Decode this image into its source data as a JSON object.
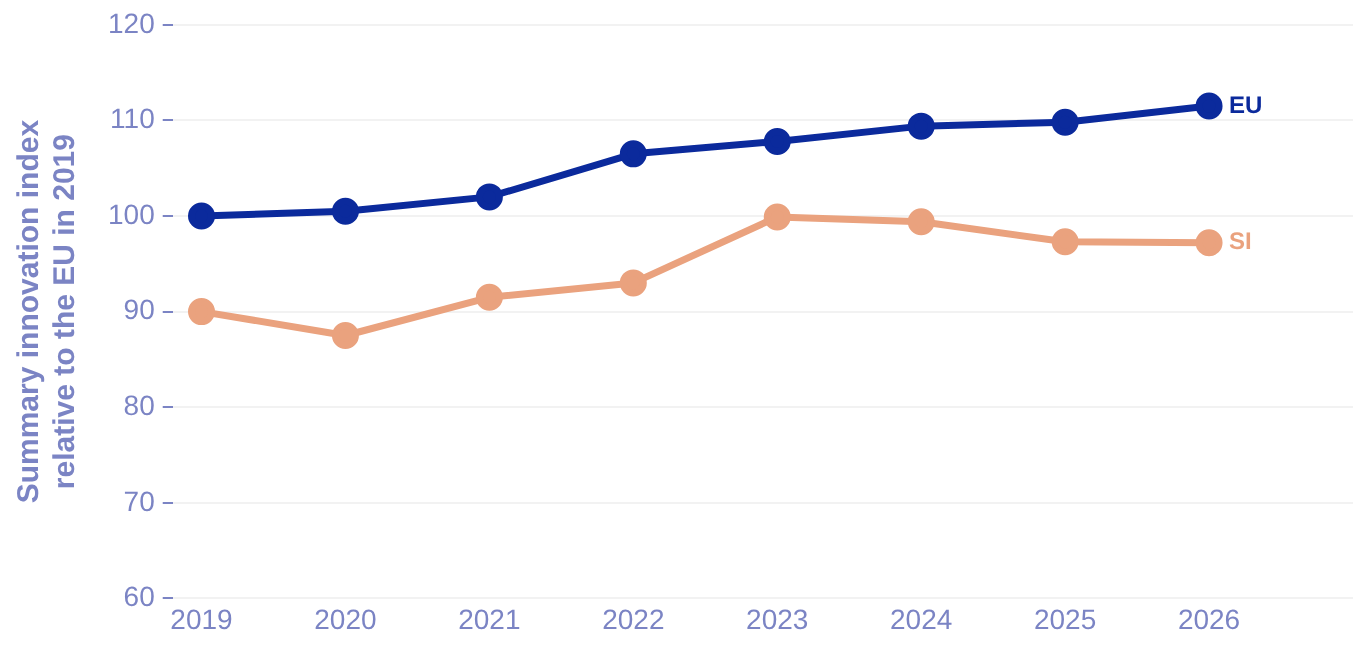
{
  "chart_data": {
    "type": "line",
    "ylabel": "Summary innovation index\nrelative to the EU in 2019",
    "x": [
      2019,
      2020,
      2021,
      2022,
      2023,
      2024,
      2025,
      2026
    ],
    "xlim": [
      2018.8,
      2027
    ],
    "xticks": [
      2019,
      2020,
      2021,
      2022,
      2023,
      2024,
      2025,
      2026
    ],
    "ylim": [
      60,
      120
    ],
    "yticks": [
      60,
      70,
      80,
      90,
      100,
      110,
      120
    ],
    "grid": "y",
    "marker": "circle",
    "line_style": "solid",
    "legend": false,
    "series": [
      {
        "name": "EU",
        "color": "#0b2a9c",
        "values": [
          100,
          100.5,
          102,
          106.5,
          107.8,
          109.4,
          109.8,
          111.5
        ]
      },
      {
        "name": "SI",
        "color": "#eaa27e",
        "values": [
          90,
          87.5,
          91.5,
          93,
          99.9,
          99.4,
          97.3,
          97.2
        ]
      }
    ]
  }
}
